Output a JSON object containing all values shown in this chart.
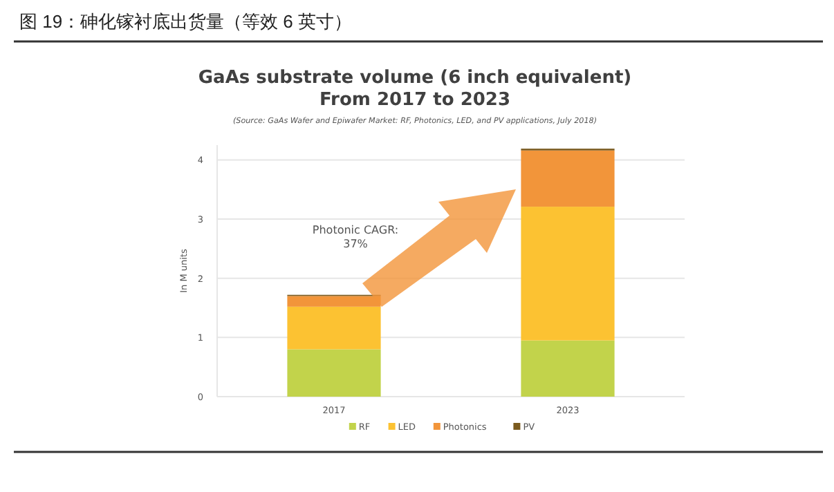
{
  "chart_data": {
    "type": "bar",
    "title": "GaAs substrate volume (6 inch equivalent)",
    "subtitle": "From 2017 to 2023",
    "ylabel": "In M units",
    "annotations": [
      "图 19：砷化镓衬底出货量（等效 6 英寸）",
      "(Source: GaAs Wafer and Epiwafer Market: RF, Photonics, LED, and PV applications, July 2018)",
      "Photonic CAGR:\n37%"
    ],
    "categories": [
      "2017",
      "2023"
    ],
    "stacked": true,
    "series": [
      {
        "name": "RF",
        "color": "#c2d34b",
        "values": [
          0.8,
          0.95
        ]
      },
      {
        "name": "LED",
        "color": "#fcc232",
        "values": [
          0.72,
          2.26
        ]
      },
      {
        "name": "Photonics",
        "color": "#f2953a",
        "values": [
          0.18,
          0.95
        ]
      },
      {
        "name": "PV",
        "color": "#7a5a1e",
        "values": [
          0.02,
          0.03
        ]
      }
    ],
    "ylim": [
      0,
      4.25
    ],
    "yticks": [
      0,
      1,
      2,
      3,
      4
    ],
    "grid": "y",
    "legend": "bottom"
  }
}
